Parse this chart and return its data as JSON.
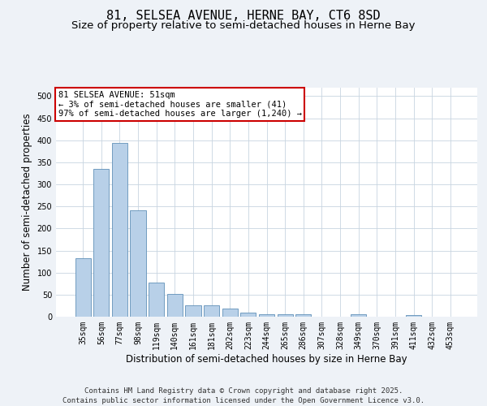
{
  "title_line1": "81, SELSEA AVENUE, HERNE BAY, CT6 8SD",
  "title_line2": "Size of property relative to semi-detached houses in Herne Bay",
  "xlabel": "Distribution of semi-detached houses by size in Herne Bay",
  "ylabel": "Number of semi-detached properties",
  "categories": [
    "35sqm",
    "56sqm",
    "77sqm",
    "98sqm",
    "119sqm",
    "140sqm",
    "161sqm",
    "181sqm",
    "202sqm",
    "223sqm",
    "244sqm",
    "265sqm",
    "286sqm",
    "307sqm",
    "328sqm",
    "349sqm",
    "370sqm",
    "391sqm",
    "411sqm",
    "432sqm",
    "453sqm"
  ],
  "values": [
    133,
    335,
    393,
    241,
    78,
    51,
    26,
    25,
    19,
    10,
    5,
    6,
    5,
    0,
    0,
    5,
    0,
    0,
    4,
    0,
    0
  ],
  "bar_color": "#b8d0e8",
  "bar_edge_color": "#6090b8",
  "annotation_box_text": "81 SELSEA AVENUE: 51sqm\n← 3% of semi-detached houses are smaller (41)\n97% of semi-detached houses are larger (1,240) →",
  "annotation_box_color": "#ffffff",
  "annotation_box_edge_color": "#cc0000",
  "footer_text": "Contains HM Land Registry data © Crown copyright and database right 2025.\nContains public sector information licensed under the Open Government Licence v3.0.",
  "ylim": [
    0,
    520
  ],
  "yticks": [
    0,
    50,
    100,
    150,
    200,
    250,
    300,
    350,
    400,
    450,
    500
  ],
  "bg_color": "#eef2f7",
  "plot_bg_color": "#ffffff",
  "grid_color": "#c8d4e0",
  "title_fontsize": 11,
  "subtitle_fontsize": 9.5,
  "axis_label_fontsize": 8.5,
  "tick_fontsize": 7,
  "footer_fontsize": 6.5,
  "annotation_fontsize": 7.5
}
